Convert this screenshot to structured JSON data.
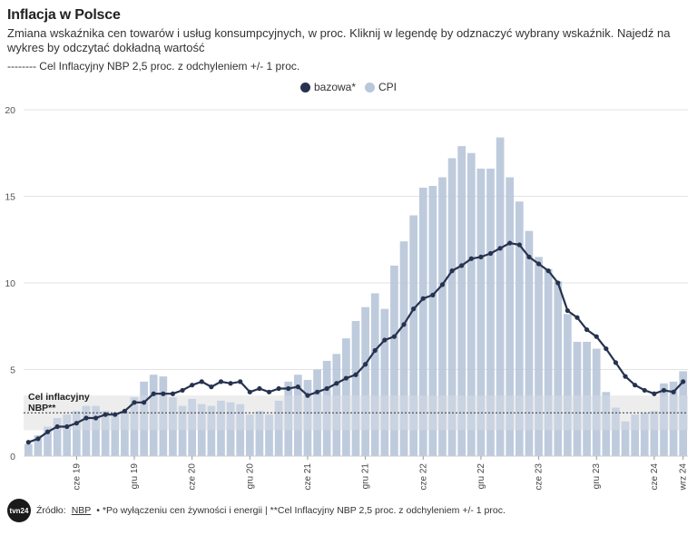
{
  "header": {
    "title": "Inflacja w Polsce",
    "subtitle": "Zmiana wskaźnika cen towarów i usług konsumpcyjnych, w proc. Kliknij w legendę by odznaczyć wybrany wskaźnik. Najedź na wykres by odczytać dokładną wartość",
    "target_note": "-------- Cel Inflacyjny NBP 2,5 proc. z odchyleniem +/- 1 proc."
  },
  "footer": {
    "logo_text": "tvn24",
    "source_label": "Źródło:",
    "source_link": "NBP",
    "note": "• *Po wyłączeniu cen żywności i energii | **Cel Inflacyjny NBP 2,5 proc. z odchyleniem +/- 1 proc."
  },
  "colors": {
    "cpi": "#b8c7da",
    "core": "#27324f",
    "band": "#e6e6e6",
    "grid": "#e3e3e3",
    "text": "#333333"
  },
  "chart_data": {
    "type": "bar",
    "title": "Inflacja w Polsce",
    "xlabel": "",
    "ylabel": "",
    "ylim": [
      0,
      20
    ],
    "yticks": [
      "0",
      "5",
      "10",
      "15",
      "20"
    ],
    "legend": [
      "bazowa*",
      "CPI"
    ],
    "legend_position": "top-center",
    "target": {
      "label_line1": "Cel inflacyjny",
      "label_line2": "NBP**",
      "value": 2.5,
      "band": [
        1.5,
        3.5
      ]
    },
    "x_tick_labels": [
      {
        "index": 5,
        "label": "cze 19"
      },
      {
        "index": 11,
        "label": "gru 19"
      },
      {
        "index": 17,
        "label": "cze 20"
      },
      {
        "index": 23,
        "label": "gru 20"
      },
      {
        "index": 29,
        "label": "cze 21"
      },
      {
        "index": 35,
        "label": "gru 21"
      },
      {
        "index": 41,
        "label": "cze 22"
      },
      {
        "index": 47,
        "label": "gru 22"
      },
      {
        "index": 53,
        "label": "cze 23"
      },
      {
        "index": 59,
        "label": "gru 23"
      },
      {
        "index": 65,
        "label": "cze 24"
      },
      {
        "index": 68,
        "label": "wrz 24"
      }
    ],
    "series": [
      {
        "name": "CPI",
        "kind": "bar",
        "values": [
          0.7,
          1.2,
          1.7,
          2.2,
          2.4,
          2.6,
          2.9,
          2.9,
          2.6,
          2.5,
          2.6,
          3.4,
          4.3,
          4.7,
          4.6,
          3.4,
          2.9,
          3.3,
          3.0,
          2.9,
          3.2,
          3.1,
          3.0,
          2.4,
          2.6,
          2.4,
          3.2,
          4.3,
          4.7,
          4.4,
          5.0,
          5.5,
          5.9,
          6.8,
          7.8,
          8.6,
          9.4,
          8.5,
          11.0,
          12.4,
          13.9,
          15.5,
          15.6,
          16.1,
          17.2,
          17.9,
          17.5,
          16.6,
          16.6,
          18.4,
          16.1,
          14.7,
          13.0,
          11.5,
          10.8,
          10.1,
          8.2,
          6.6,
          6.6,
          6.2,
          3.7,
          2.8,
          2.0,
          2.4,
          2.5,
          2.6,
          4.2,
          4.3,
          4.9
        ]
      },
      {
        "name": "bazowa*",
        "kind": "line",
        "values": [
          0.8,
          1.0,
          1.4,
          1.7,
          1.7,
          1.9,
          2.2,
          2.2,
          2.4,
          2.4,
          2.6,
          3.1,
          3.1,
          3.6,
          3.6,
          3.6,
          3.8,
          4.1,
          4.3,
          4.0,
          4.3,
          4.2,
          4.3,
          3.7,
          3.9,
          3.7,
          3.9,
          3.9,
          4.0,
          3.5,
          3.7,
          3.9,
          4.2,
          4.5,
          4.7,
          5.3,
          6.1,
          6.7,
          6.9,
          7.6,
          8.5,
          9.1,
          9.3,
          9.9,
          10.7,
          11.0,
          11.4,
          11.5,
          11.7,
          12.0,
          12.3,
          12.2,
          11.5,
          11.1,
          10.7,
          10.0,
          8.4,
          8.0,
          7.3,
          6.9,
          6.2,
          5.4,
          4.6,
          4.1,
          3.8,
          3.6,
          3.8,
          3.7,
          4.3
        ]
      }
    ]
  }
}
